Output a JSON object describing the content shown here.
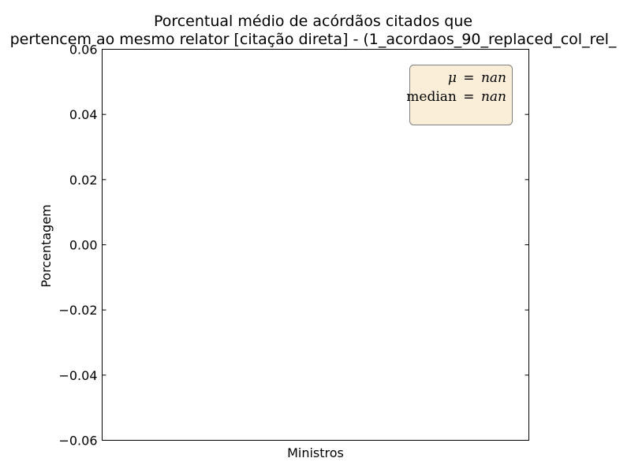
{
  "chart_data": {
    "type": "bar",
    "title_line1": "Porcentual médio de acórdãos citados que",
    "title_line2": "pertencem ao mesmo relator [citação direta] - (1_acordaos_90_replaced_col_rel_",
    "xlabel": "Ministros",
    "ylabel": "Porcentagem",
    "categories": [],
    "values": [],
    "ylim": [
      -0.06,
      0.06
    ],
    "yticks": [
      -0.06,
      -0.04,
      -0.02,
      0.0,
      0.02,
      0.04,
      0.06
    ],
    "ytick_labels": [
      "−0.06",
      "−0.04",
      "−0.02",
      "0.00",
      "0.02",
      "0.04",
      "0.06"
    ],
    "grid": false,
    "stats_box": {
      "position": "top-right",
      "mu_symbol": "μ",
      "mu_value": "nan",
      "median_label": "median",
      "median_value": "nan",
      "equals": "=",
      "background": "#f5deb3",
      "border": "#7f7f7f"
    }
  }
}
